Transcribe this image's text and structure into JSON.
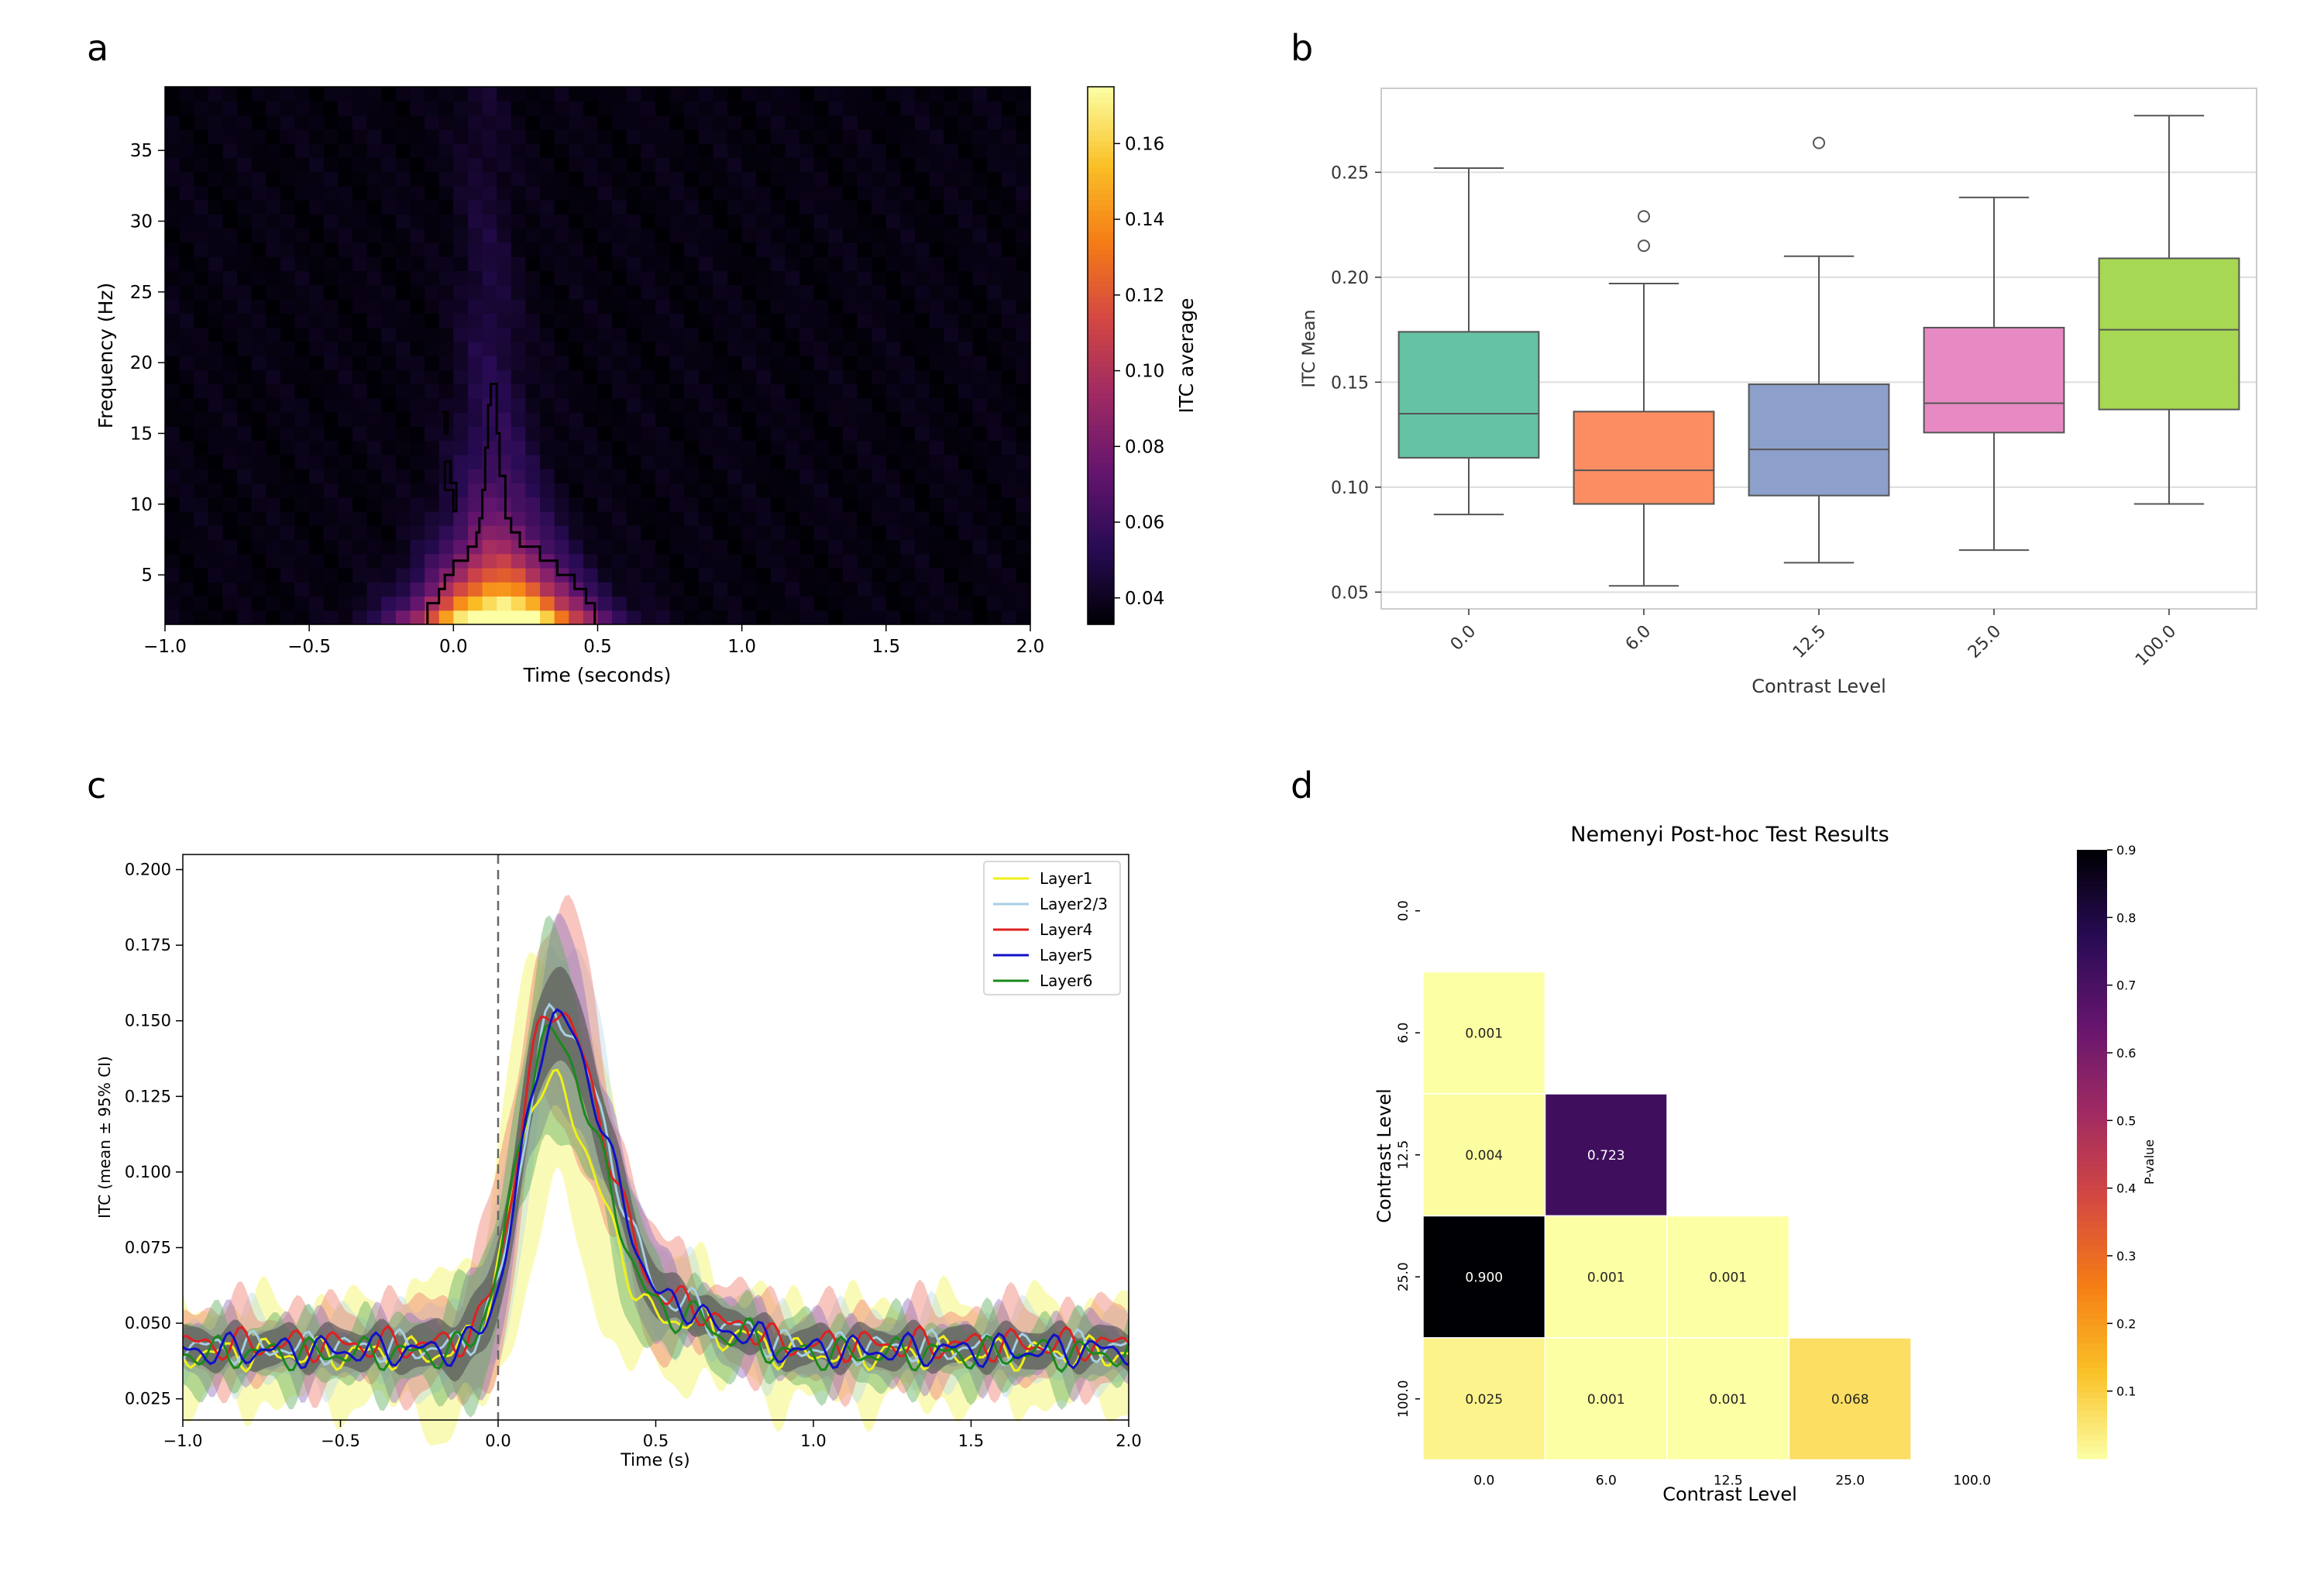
{
  "panels": {
    "a": {
      "letter": "a",
      "chart_data": {
        "type": "heatmap",
        "xlabel": "Time (seconds)",
        "ylabel": "Frequency (Hz)",
        "xlim": [
          -1.0,
          2.0
        ],
        "ylim": [
          1.5,
          39.5
        ],
        "xticks": [
          -1.0,
          -0.5,
          0.0,
          0.5,
          1.0,
          1.5,
          2.0
        ],
        "xtick_labels": [
          "−1.0",
          "−0.5",
          "0.0",
          "0.5",
          "1.0",
          "1.5",
          "2.0"
        ],
        "yticks": [
          5,
          10,
          15,
          20,
          25,
          30,
          35
        ],
        "colorbar": {
          "label": "ITC average",
          "range": [
            0.033,
            0.175
          ],
          "ticks": [
            0.04,
            0.06,
            0.08,
            0.1,
            0.12,
            0.14,
            0.16
          ],
          "tick_labels": [
            "0.04",
            "0.06",
            "0.08",
            "0.10",
            "0.12",
            "0.14",
            "0.16"
          ],
          "colormap": "inferno"
        },
        "peak": {
          "time": 0.2,
          "frequency": 2.0,
          "value": 0.175
        },
        "significance_contour": true
      }
    },
    "b": {
      "letter": "b",
      "chart_data": {
        "type": "box",
        "xlabel": "Contrast Level",
        "ylabel": "ITC Mean",
        "ylim": [
          0.042,
          0.29
        ],
        "yticks": [
          0.05,
          0.1,
          0.15,
          0.2,
          0.25
        ],
        "ytick_labels": [
          "0.05",
          "0.10",
          "0.15",
          "0.20",
          "0.25"
        ],
        "grid": true,
        "categories": [
          "0.0",
          "6.0",
          "12.5",
          "25.0",
          "100.0"
        ],
        "boxes": [
          {
            "whisker_low": 0.087,
            "q1": 0.114,
            "median": 0.135,
            "q3": 0.174,
            "whisker_high": 0.252,
            "outliers": [],
            "color": "#66c2a5"
          },
          {
            "whisker_low": 0.053,
            "q1": 0.092,
            "median": 0.108,
            "q3": 0.136,
            "whisker_high": 0.197,
            "outliers": [
              0.215,
              0.229
            ],
            "color": "#fc8d62"
          },
          {
            "whisker_low": 0.064,
            "q1": 0.096,
            "median": 0.118,
            "q3": 0.149,
            "whisker_high": 0.21,
            "outliers": [
              0.264
            ],
            "color": "#8da0cb"
          },
          {
            "whisker_low": 0.07,
            "q1": 0.126,
            "median": 0.14,
            "q3": 0.176,
            "whisker_high": 0.238,
            "outliers": [],
            "color": "#e78ac3"
          },
          {
            "whisker_low": 0.092,
            "q1": 0.137,
            "median": 0.175,
            "q3": 0.209,
            "whisker_high": 0.277,
            "outliers": [],
            "color": "#a6d854"
          }
        ]
      }
    },
    "c": {
      "letter": "c",
      "chart_data": {
        "type": "line",
        "xlabel": "Time (s)",
        "ylabel": "ITC (mean ± 95% CI)",
        "xlim": [
          -1.0,
          2.0
        ],
        "ylim": [
          0.018,
          0.205
        ],
        "xticks": [
          -1.0,
          -0.5,
          0.0,
          0.5,
          1.0,
          1.5,
          2.0
        ],
        "xtick_labels": [
          "−1.0",
          "−0.5",
          "0.0",
          "0.5",
          "1.0",
          "1.5",
          "2.0"
        ],
        "yticks": [
          0.025,
          0.05,
          0.075,
          0.1,
          0.125,
          0.15,
          0.175,
          0.2
        ],
        "ytick_labels": [
          "0.025",
          "0.050",
          "0.075",
          "0.100",
          "0.125",
          "0.150",
          "0.175",
          "0.200"
        ],
        "vline": 0.0,
        "legend_position": "top-right",
        "series": [
          {
            "name": "Layer1",
            "color": "#f0f018",
            "ci_color": "#f5f560",
            "peak": 0.13,
            "peak_t": 0.15,
            "baseline": 0.04,
            "ci": 0.016
          },
          {
            "name": "Layer2/3",
            "color": "#a6cfe3",
            "ci_color": "#bcdcea",
            "peak": 0.152,
            "peak_t": 0.18,
            "baseline": 0.042,
            "ci": 0.01
          },
          {
            "name": "Layer4",
            "color": "#e02020",
            "ci_color": "#f08070",
            "peak": 0.155,
            "peak_t": 0.17,
            "baseline": 0.043,
            "ci": 0.012
          },
          {
            "name": "Layer5",
            "color": "#1010c8",
            "ci_color": "#9070c0",
            "peak": 0.151,
            "peak_t": 0.18,
            "baseline": 0.041,
            "ci": 0.009
          },
          {
            "name": "Layer6",
            "color": "#1a8a1a",
            "ci_color": "#60b060",
            "peak": 0.145,
            "peak_t": 0.16,
            "baseline": 0.04,
            "ci": 0.01
          }
        ]
      }
    },
    "d": {
      "letter": "d",
      "chart_data": {
        "type": "heatmap",
        "title": "Nemenyi Post-hoc Test Results",
        "xlabel": "Contrast Level",
        "ylabel": "Contrast Level",
        "categories": [
          "0.0",
          "6.0",
          "12.5",
          "25.0",
          "100.0"
        ],
        "matrix_lower": [
          [
            null,
            null,
            null,
            null,
            null
          ],
          [
            0.001,
            null,
            null,
            null,
            null
          ],
          [
            0.004,
            0.723,
            null,
            null,
            null
          ],
          [
            0.9,
            0.001,
            0.001,
            null,
            null
          ],
          [
            0.025,
            0.001,
            0.001,
            0.068,
            null
          ]
        ],
        "cell_labels": [
          [
            "",
            "",
            "",
            "",
            ""
          ],
          [
            "0.001",
            "",
            "",
            "",
            ""
          ],
          [
            "0.004",
            "0.723",
            "",
            "",
            ""
          ],
          [
            "0.900",
            "0.001",
            "0.001",
            "",
            ""
          ],
          [
            "0.025",
            "0.001",
            "0.001",
            "0.068",
            ""
          ]
        ],
        "colorbar": {
          "label": "P-value",
          "range": [
            0.0,
            0.9
          ],
          "ticks": [
            0.1,
            0.2,
            0.3,
            0.4,
            0.5,
            0.6,
            0.7,
            0.8,
            0.9
          ],
          "tick_labels": [
            "0.1",
            "0.2",
            "0.3",
            "0.4",
            "0.5",
            "0.6",
            "0.7",
            "0.8",
            "0.9"
          ],
          "colormap": "inferno_r"
        }
      }
    }
  }
}
